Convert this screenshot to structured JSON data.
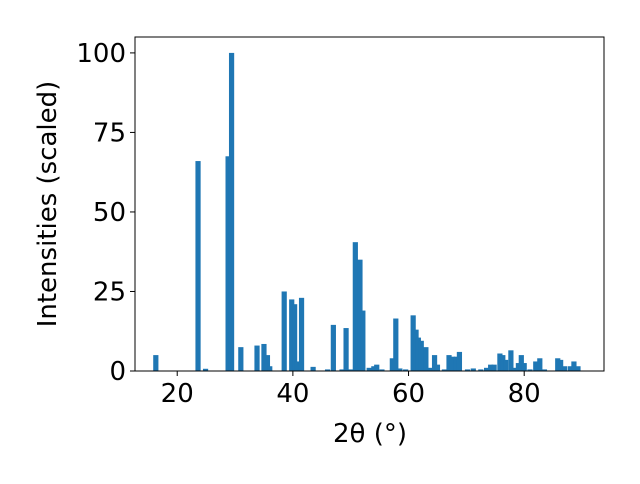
{
  "chart_data": {
    "type": "bar",
    "x_label": "2θ (°)",
    "y_label": "Intensities (scaled)",
    "color": "#1f77b4",
    "grid": false,
    "x": [
      16.3,
      23.6,
      24.9,
      28.8,
      29.4,
      31.0,
      33.8,
      35.0,
      35.6,
      36.0,
      38.5,
      39.8,
      40.3,
      40.7,
      41.5,
      43.5,
      46.0,
      47.0,
      48.5,
      49.2,
      50.0,
      50.8,
      51.2,
      51.6,
      52.1,
      53.2,
      54.0,
      54.5,
      55.4,
      57.2,
      57.8,
      58.5,
      59.5,
      60.8,
      61.3,
      61.7,
      62.2,
      63.0,
      63.8,
      64.5,
      65.0,
      66.2,
      67.0,
      67.6,
      68.3,
      68.8,
      70.2,
      71.2,
      72.5,
      73.5,
      74.2,
      74.8,
      75.8,
      76.3,
      76.8,
      77.7,
      78.2,
      79.0,
      79.5,
      80.0,
      81.0,
      82.0,
      82.7,
      83.5,
      85.8,
      86.3,
      87.0,
      88.0,
      88.6,
      89.3
    ],
    "values": [
      5,
      66,
      0.7,
      67.5,
      100,
      7.5,
      8,
      8.5,
      5,
      1.5,
      25,
      22.5,
      21,
      3,
      23,
      1.3,
      0.5,
      14.5,
      0.5,
      13.5,
      0.5,
      40.5,
      24,
      35,
      19,
      1,
      1.5,
      2,
      0.5,
      4,
      16.5,
      0.8,
      0.5,
      17.5,
      13,
      10.5,
      9.5,
      7.5,
      1,
      5,
      2,
      0.5,
      5,
      4.5,
      4.5,
      6,
      0.5,
      0.8,
      0.5,
      1,
      2,
      2,
      5.5,
      5,
      3.5,
      6.5,
      1,
      2.5,
      5,
      2.5,
      0.5,
      3,
      4,
      0.5,
      4,
      3.5,
      1.5,
      1.5,
      3,
      1.5
    ],
    "xlim": [
      12.7,
      93.8
    ],
    "ylim": [
      0,
      105
    ],
    "xticks": [
      20,
      40,
      60,
      80
    ],
    "yticks": [
      0,
      25,
      50,
      75,
      100
    ]
  }
}
